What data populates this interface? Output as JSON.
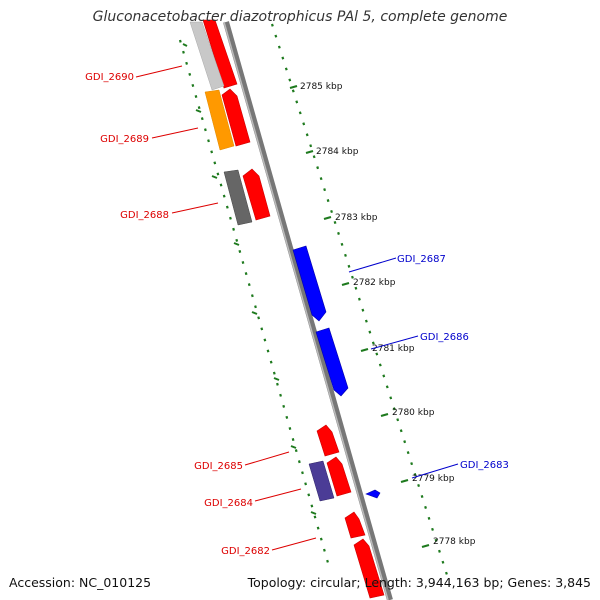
{
  "title": "Gluconacetobacter diazotrophicus PAl 5, complete genome",
  "footer": {
    "accession": "Accession: NC_010125",
    "topology": "Topology: circular; Length: 3,944,163 bp; Genes: 3,845"
  },
  "ticks": [
    "2785 kbp",
    "2784 kbp",
    "2783 kbp",
    "2782 kbp",
    "2781 kbp",
    "2780 kbp",
    "2779 kbp",
    "2778 kbp"
  ],
  "genes": [
    {
      "id": "GDI_2690",
      "label": "GDI_2690",
      "color": "#c8c8c8"
    },
    {
      "id": "GDI_2689",
      "label": "GDI_2689",
      "color": "#ff9900"
    },
    {
      "id": "GDI_2688",
      "label": "GDI_2688",
      "color": "#666666"
    },
    {
      "id": "GDI_2687",
      "label": "GDI_2687",
      "color": "#0000ff"
    },
    {
      "id": "GDI_2686",
      "label": "GDI_2686",
      "color": "#0000ff"
    },
    {
      "id": "GDI_2685",
      "label": "GDI_2685",
      "color": "#ff0000"
    },
    {
      "id": "GDI_2684",
      "label": "GDI_2684",
      "color": "#4b3c96"
    },
    {
      "id": "GDI_2683",
      "label": "GDI_2683",
      "color": "#0000ff"
    },
    {
      "id": "GDI_2682",
      "label": "GDI_2682",
      "color": "#ff0000"
    }
  ],
  "colors": {
    "forward_strand": "#ff0000",
    "reverse_strand": "#0000ff",
    "backbone": "#888888",
    "tick_marks": "#1e7a1e",
    "label_forward": "#dd0000",
    "label_reverse": "#0000cc"
  }
}
